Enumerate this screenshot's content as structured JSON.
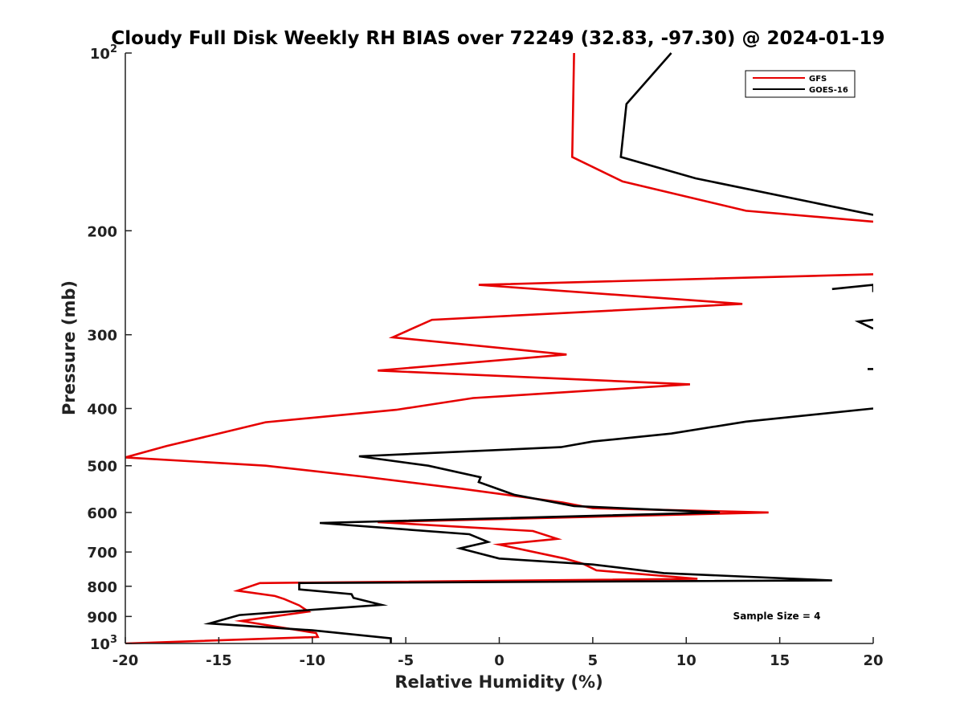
{
  "chart_data": {
    "type": "line",
    "title": "Cloudy Full Disk Weekly RH BIAS over 72249 (32.83, -97.30) @ 2024-01-19",
    "xlabel": "Relative Humidity (%)",
    "ylabel": "Pressure (mb)",
    "xlim": [
      -20,
      20
    ],
    "ylim": [
      100,
      1000
    ],
    "y_scale": "log",
    "y_reversed": true,
    "grid": false,
    "legend_position": "top-right",
    "x_ticks": [
      {
        "value": -20,
        "label": "-20"
      },
      {
        "value": -15,
        "label": "-15"
      },
      {
        "value": -10,
        "label": "-10"
      },
      {
        "value": -5,
        "label": "-5"
      },
      {
        "value": 0,
        "label": "0"
      },
      {
        "value": 5,
        "label": "5"
      },
      {
        "value": 10,
        "label": "10"
      },
      {
        "value": 15,
        "label": "15"
      },
      {
        "value": 20,
        "label": "20"
      }
    ],
    "y_ticks": [
      {
        "value": 100,
        "base": "10",
        "exp": "2"
      },
      {
        "value": 200,
        "label": "200"
      },
      {
        "value": 300,
        "label": "300"
      },
      {
        "value": 400,
        "label": "400"
      },
      {
        "value": 500,
        "label": "500"
      },
      {
        "value": 600,
        "label": "600"
      },
      {
        "value": 700,
        "label": "700"
      },
      {
        "value": 800,
        "label": "800"
      },
      {
        "value": 900,
        "label": "900"
      },
      {
        "value": 1000,
        "base": "10",
        "exp": "3"
      }
    ],
    "annotation": "Sample Size = 4",
    "series": [
      {
        "name": "GFS",
        "color": "#e60000",
        "segments": [
          [
            [
              4.0,
              100
            ],
            [
              3.9,
              150
            ],
            [
              6.6,
              165
            ],
            [
              13.2,
              185
            ],
            [
              20.0,
              193
            ]
          ],
          [
            [
              20.0,
              237
            ],
            [
              -1.1,
              247
            ],
            [
              13.0,
              266
            ],
            [
              -3.6,
              283
            ],
            [
              -5.7,
              303
            ],
            [
              3.6,
              324
            ],
            [
              -6.5,
              345
            ],
            [
              10.2,
              364
            ],
            [
              -1.4,
              384
            ],
            [
              -5.5,
              402
            ],
            [
              -12.5,
              422
            ],
            [
              -15.5,
              445
            ],
            [
              -17.8,
              463
            ],
            [
              -20.0,
              484
            ],
            [
              -12.5,
              500
            ],
            [
              -7.2,
              522
            ],
            [
              -2.0,
              547
            ],
            [
              3.4,
              577
            ],
            [
              5.0,
              590
            ],
            [
              14.4,
              600
            ],
            [
              -6.5,
              623
            ],
            [
              1.8,
              645
            ],
            [
              3.1,
              665
            ],
            [
              0.0,
              680
            ],
            [
              3.5,
              718
            ],
            [
              4.5,
              733
            ],
            [
              5.2,
              752
            ],
            [
              10.6,
              777
            ],
            [
              -12.8,
              790
            ],
            [
              -14.0,
              814
            ],
            [
              -12.0,
              831
            ],
            [
              -11.5,
              841
            ],
            [
              -10.7,
              862
            ],
            [
              -10.2,
              883
            ],
            [
              -13.8,
              916
            ],
            [
              -9.8,
              960
            ],
            [
              -9.7,
              975
            ],
            [
              -20.0,
              1000
            ]
          ]
        ]
      },
      {
        "name": "GOES-16",
        "color": "#000000",
        "segments": [
          [
            [
              9.2,
              100
            ],
            [
              6.8,
              122
            ],
            [
              6.5,
              150
            ],
            [
              10.5,
              163
            ],
            [
              20.0,
              188
            ]
          ],
          [
            [
              17.8,
              251
            ],
            [
              20.0,
              247
            ],
            [
              20.0,
              254
            ]
          ],
          [
            [
              20.0,
              283
            ],
            [
              19.2,
              285
            ],
            [
              20.0,
              293
            ]
          ],
          [
            [
              19.7,
              343
            ],
            [
              20.0,
              343
            ]
          ],
          [
            [
              20.0,
              400
            ],
            [
              13.2,
              421
            ],
            [
              9.2,
              441
            ],
            [
              5.0,
              455
            ],
            [
              3.3,
              465
            ],
            [
              -7.5,
              482
            ],
            [
              -3.8,
              500
            ],
            [
              -1.0,
              523
            ],
            [
              -1.1,
              533
            ],
            [
              0.8,
              560
            ],
            [
              4.0,
              585
            ],
            [
              11.8,
              600
            ],
            [
              -9.6,
              625
            ],
            [
              -1.6,
              653
            ],
            [
              -0.6,
              673
            ],
            [
              -2.1,
              690
            ],
            [
              0.0,
              718
            ],
            [
              5.0,
              735
            ],
            [
              8.8,
              760
            ],
            [
              17.8,
              782
            ],
            [
              -10.7,
              790
            ],
            [
              -10.7,
              810
            ],
            [
              -7.9,
              825
            ],
            [
              -7.8,
              837
            ],
            [
              -6.3,
              860
            ],
            [
              -13.9,
              895
            ],
            [
              -15.5,
              925
            ],
            [
              -10.0,
              950
            ],
            [
              -5.8,
              980
            ],
            [
              -5.8,
              1000
            ]
          ]
        ]
      }
    ]
  }
}
